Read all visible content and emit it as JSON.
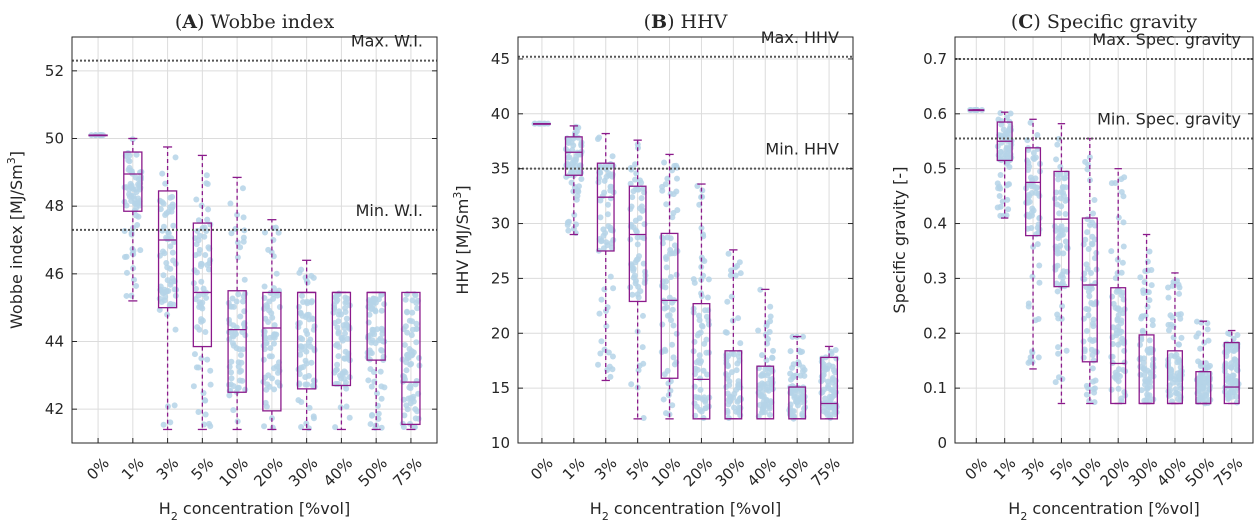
{
  "colors": {
    "box": "#8B1A8B",
    "scatter": "#B5D3E7",
    "grid": "#dcdcdc",
    "refline": "#555555"
  },
  "chart_data": [
    {
      "type": "box",
      "panel_letter": "A",
      "title": "Wobbe index",
      "ylabel": "Wobbe index [MJ/Sm",
      "ylabel_sup": "3",
      "ylabel_suffix": "]",
      "xlabel_prefix": "H",
      "xlabel_sub": "2",
      "xlabel_suffix": " concentration [%vol]",
      "categories": [
        "0%",
        "1%",
        "3%",
        "5%",
        "10%",
        "20%",
        "30%",
        "40%",
        "50%",
        "75%"
      ],
      "ylim": [
        41,
        53
      ],
      "yticks": [
        42,
        44,
        46,
        48,
        50,
        52
      ],
      "grid": true,
      "boxes": [
        {
          "wl": 50.1,
          "q1": 50.1,
          "med": 50.1,
          "q3": 50.1,
          "wh": 50.1
        },
        {
          "wl": 45.2,
          "q1": 47.85,
          "med": 48.95,
          "q3": 49.6,
          "wh": 50.0
        },
        {
          "wl": 41.4,
          "q1": 45.0,
          "med": 47.0,
          "q3": 48.45,
          "wh": 49.75
        },
        {
          "wl": 41.4,
          "q1": 43.85,
          "med": 45.45,
          "q3": 47.5,
          "wh": 49.5
        },
        {
          "wl": 41.4,
          "q1": 42.5,
          "med": 44.35,
          "q3": 45.5,
          "wh": 48.85
        },
        {
          "wl": 41.4,
          "q1": 41.95,
          "med": 44.4,
          "q3": 45.45,
          "wh": 47.6
        },
        {
          "wl": 41.4,
          "q1": 42.6,
          "med": 45.45,
          "q3": 45.45,
          "wh": 46.4
        },
        {
          "wl": 41.4,
          "q1": 42.7,
          "med": 45.45,
          "q3": 45.45,
          "wh": 45.45
        },
        {
          "wl": 41.4,
          "q1": 43.45,
          "med": 45.45,
          "q3": 45.45,
          "wh": 45.45
        },
        {
          "wl": 41.4,
          "q1": 41.55,
          "med": 42.8,
          "q3": 45.45,
          "wh": 45.45
        }
      ],
      "ref_lines": [
        {
          "label": "Max. W.I.",
          "value": 52.3
        },
        {
          "label": "Min. W.I.",
          "value": 47.3
        }
      ]
    },
    {
      "type": "box",
      "panel_letter": "B",
      "title": "HHV",
      "ylabel": "HHV [MJ/Sm",
      "ylabel_sup": "3",
      "ylabel_suffix": "]",
      "xlabel_prefix": "H",
      "xlabel_sub": "2",
      "xlabel_suffix": " concentration [%vol]",
      "categories": [
        "0%",
        "1%",
        "3%",
        "5%",
        "10%",
        "20%",
        "30%",
        "40%",
        "50%",
        "75%"
      ],
      "ylim": [
        10,
        47
      ],
      "yticks": [
        10,
        15,
        20,
        25,
        30,
        35,
        40,
        45
      ],
      "grid": true,
      "boxes": [
        {
          "wl": 39.1,
          "q1": 39.1,
          "med": 39.1,
          "q3": 39.1,
          "wh": 39.1
        },
        {
          "wl": 29.0,
          "q1": 34.4,
          "med": 36.5,
          "q3": 37.9,
          "wh": 38.9
        },
        {
          "wl": 15.7,
          "q1": 27.5,
          "med": 32.4,
          "q3": 35.5,
          "wh": 38.2
        },
        {
          "wl": 12.2,
          "q1": 22.9,
          "med": 29.0,
          "q3": 33.4,
          "wh": 37.6
        },
        {
          "wl": 12.2,
          "q1": 15.9,
          "med": 23.0,
          "q3": 29.1,
          "wh": 36.3
        },
        {
          "wl": 12.2,
          "q1": 12.2,
          "med": 15.8,
          "q3": 22.7,
          "wh": 33.6
        },
        {
          "wl": 12.2,
          "q1": 12.2,
          "med": 12.2,
          "q3": 18.4,
          "wh": 27.6
        },
        {
          "wl": 12.2,
          "q1": 12.2,
          "med": 12.2,
          "q3": 17.0,
          "wh": 24.0
        },
        {
          "wl": 12.2,
          "q1": 12.2,
          "med": 12.2,
          "q3": 15.1,
          "wh": 19.7
        },
        {
          "wl": 12.2,
          "q1": 12.2,
          "med": 13.6,
          "q3": 17.8,
          "wh": 18.8
        }
      ],
      "ref_lines": [
        {
          "label": "Max. HHV",
          "value": 45.2
        },
        {
          "label": "Min. HHV",
          "value": 35.0
        }
      ]
    },
    {
      "type": "box",
      "panel_letter": "C",
      "title": "Specific gravity",
      "ylabel": "Specific gravity [-]",
      "ylabel_sup": "",
      "ylabel_suffix": "",
      "xlabel_prefix": "H",
      "xlabel_sub": "2",
      "xlabel_suffix": " concentration [%vol]",
      "categories": [
        "0%",
        "1%",
        "3%",
        "5%",
        "10%",
        "20%",
        "30%",
        "40%",
        "50%",
        "75%"
      ],
      "ylim": [
        0,
        0.74
      ],
      "yticks": [
        0,
        0.1,
        0.2,
        0.3,
        0.4,
        0.5,
        0.6,
        0.7
      ],
      "grid": true,
      "boxes": [
        {
          "wl": 0.607,
          "q1": 0.607,
          "med": 0.607,
          "q3": 0.607,
          "wh": 0.607
        },
        {
          "wl": 0.41,
          "q1": 0.515,
          "med": 0.55,
          "q3": 0.585,
          "wh": 0.603
        },
        {
          "wl": 0.135,
          "q1": 0.378,
          "med": 0.475,
          "q3": 0.538,
          "wh": 0.59
        },
        {
          "wl": 0.072,
          "q1": 0.285,
          "med": 0.408,
          "q3": 0.495,
          "wh": 0.582
        },
        {
          "wl": 0.072,
          "q1": 0.148,
          "med": 0.288,
          "q3": 0.41,
          "wh": 0.555
        },
        {
          "wl": 0.072,
          "q1": 0.072,
          "med": 0.145,
          "q3": 0.283,
          "wh": 0.5
        },
        {
          "wl": 0.072,
          "q1": 0.072,
          "med": 0.072,
          "q3": 0.197,
          "wh": 0.38
        },
        {
          "wl": 0.072,
          "q1": 0.072,
          "med": 0.072,
          "q3": 0.168,
          "wh": 0.31
        },
        {
          "wl": 0.072,
          "q1": 0.072,
          "med": 0.072,
          "q3": 0.13,
          "wh": 0.222
        },
        {
          "wl": 0.072,
          "q1": 0.072,
          "med": 0.102,
          "q3": 0.183,
          "wh": 0.205
        }
      ],
      "ref_lines": [
        {
          "label": "Max. Spec. gravity",
          "value": 0.7
        },
        {
          "label": "Min. Spec. gravity",
          "value": 0.555
        }
      ]
    }
  ]
}
